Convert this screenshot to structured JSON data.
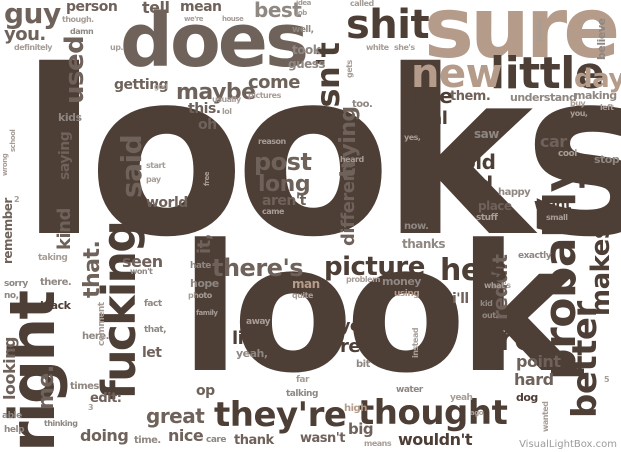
{
  "words": {
    "looks_big": "looks",
    "look_big": "look",
    "does": "does",
    "sure": "sure",
    "shit": "shit",
    "isnt": "isn't",
    "little": "little",
    "new": "new",
    "day": "day",
    "right": "right",
    "fucking": "fucking",
    "probably": "probably",
    "better": "better",
    "makes": "makes",
    "thought": "thought",
    "theyre": "they're",
    "bro": "bro",
    "hes": "he's",
    "picture": "picture",
    "theres": "there's",
    "post": "post",
    "long": "long",
    "guy": "guy",
    "you": "you.",
    "used": "used",
    "maybe": "maybe",
    "getting": "getting",
    "come": "come",
    "live": "live",
    "them": "them.",
    "old": "old",
    "bad": "bad",
    "life": "life",
    "read": "read",
    "year": "year",
    "great": "great",
    "doing": "doing",
    "nice": "nice",
    "thank": "thank",
    "wasnt": "wasn't",
    "big": "big",
    "wouldnt": "wouldn't",
    "kind": "kind",
    "me": "me.",
    "said": "said",
    "world": "world",
    "arent": "aren't",
    "trying": "trying",
    "different": "different",
    "real": "real",
    "best": "best",
    "tell": "tell",
    "mean": "mean",
    "person": "person",
    "car": "car",
    "point": "point",
    "hard": "hard",
    "went": "went",
    "place": "place",
    "seen": "seen",
    "that": "that.",
    "reddit": "reddit",
    "ill": "i'll",
    "op": "op",
    "edit": "edit:",
    "let": "let",
    "oh": "oh",
    "this": "this.",
    "it": "it,",
    "kids": "kids",
    "saying": "saying",
    "took": "took",
    "guess": "guess",
    "understand": "understand",
    "making": "making",
    "believe": "believe",
    "saw": "saw",
    "yes": "yes,",
    "now": "now.",
    "thanks": "thanks",
    "happy": "happy",
    "stuff": "stuff",
    "cool": "cool",
    "stop": "stop",
    "exactly": "exactly",
    "whats": "what's",
    "dog": "dog",
    "yeah": "yeah",
    "water": "water",
    "high": "high",
    "means": "means",
    "looking": "looking",
    "here": "here.",
    "times": "times",
    "there": "there.",
    "no": "no,",
    "sorry": "sorry",
    "black": "black",
    "hope": "hope",
    "photo": "photo",
    "man": "man",
    "problem": "problem",
    "money": "money",
    "using": "using",
    "yeah2": "yeah,",
    "away": "away",
    "talking": "talking",
    "far": "far",
    "bit": "bit",
    "care": "care",
    "time": "time.",
    "thinking": "thinking",
    "help": "help",
    "able": "able",
    "remember": "remember",
    "taking": "taking",
    "fact": "fact",
    "comment": "comment",
    "that2": "that,",
    "hate": "hate",
    "wont": "won't",
    "quite": "quite",
    "instead": "instead",
    "kid": "kid",
    "out": "out.",
    "wanted": "wanted",
    "start": "start",
    "pay": "pay",
    "free": "free",
    "came": "came",
    "reason": "reason",
    "heard": "heard",
    "small": "small",
    "lol": "lol",
    "usually": "usually",
    "pictures": "pictures",
    "too": "too.",
    "gets": "gets",
    "called": "called",
    "white": "white",
    "shes": "she's",
    "home": "home",
    "buy": "buy",
    "you2": "you,",
    "left": "left",
    "idea": "idea",
    "job": "job",
    "well": "well,",
    "were": "we're",
    "house": "house",
    "though": "though.",
    "damn": "damn",
    "definitely": "definitely",
    "up": "up.",
    "god": "god",
    "wrong": "wrong",
    "school": "school",
    "n2": "2",
    "n3": "3",
    "n5": "5",
    "family": "family",
    "ago": "ago",
    "watermark": "VisualLightBox.com"
  }
}
